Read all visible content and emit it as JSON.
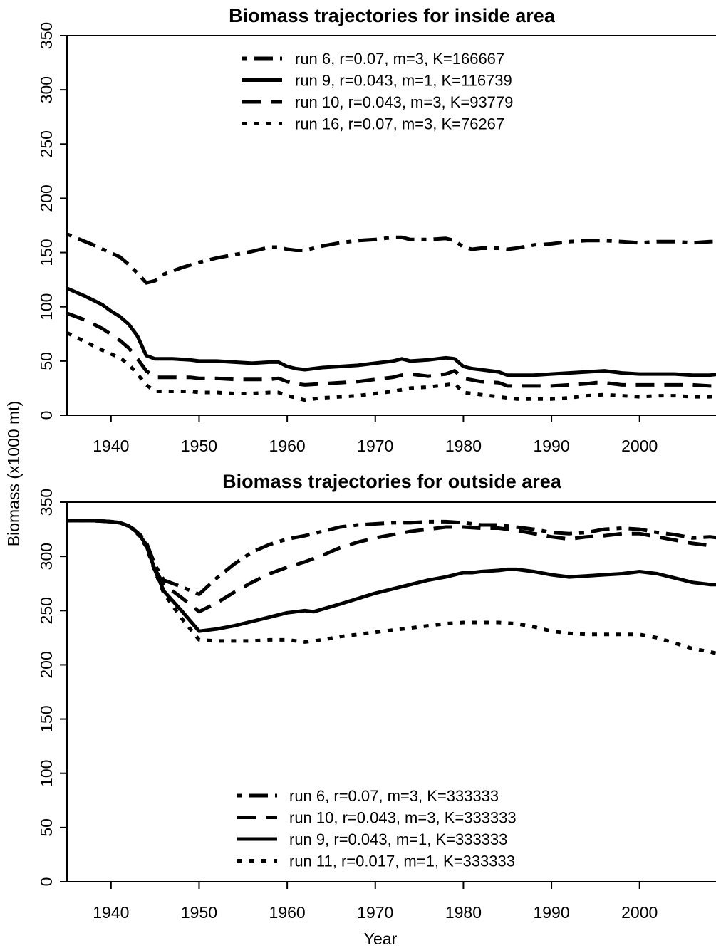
{
  "figure": {
    "ylabel": "Biomass (x1000 mt)",
    "xlabel": "Year"
  },
  "chart_data": [
    {
      "type": "line",
      "title": "Biomass trajectories for inside area",
      "xlabel": "",
      "ylabel": "Biomass (x1000 mt)",
      "xlim": [
        1935,
        2009
      ],
      "ylim": [
        0,
        350
      ],
      "xticks": [
        1940,
        1950,
        1960,
        1970,
        1980,
        1990,
        2000
      ],
      "yticks": [
        0,
        50,
        100,
        150,
        200,
        250,
        300,
        350
      ],
      "legend_position": "top-center",
      "series": [
        {
          "name": "run 6, r=0.07, m=3, K=166667",
          "style": "dotdash",
          "x": [
            1935,
            1938,
            1941,
            1942,
            1943,
            1944,
            1945,
            1946,
            1948,
            1950,
            1952,
            1954,
            1956,
            1958,
            1959,
            1960,
            1961,
            1962,
            1964,
            1966,
            1968,
            1970,
            1972,
            1973,
            1974,
            1976,
            1978,
            1979,
            1980,
            1981,
            1982,
            1984,
            1985,
            1986,
            1988,
            1990,
            1992,
            1994,
            1996,
            1998,
            2000,
            2002,
            2004,
            2006,
            2008,
            2009
          ],
          "y": [
            167,
            157,
            146,
            139,
            131,
            122,
            124,
            130,
            136,
            141,
            145,
            148,
            151,
            155,
            155,
            153,
            152,
            152,
            156,
            159,
            161,
            162,
            164,
            164,
            162,
            162,
            163,
            161,
            155,
            153,
            154,
            154,
            153,
            154,
            157,
            158,
            160,
            161,
            161,
            160,
            159,
            160,
            160,
            159,
            160,
            160
          ]
        },
        {
          "name": "run 9, r=0.043, m=1, K=116739",
          "style": "solid",
          "x": [
            1935,
            1937,
            1939,
            1940,
            1941,
            1942,
            1943,
            1944,
            1945,
            1947,
            1949,
            1950,
            1952,
            1954,
            1956,
            1958,
            1959,
            1960,
            1961,
            1962,
            1964,
            1966,
            1968,
            1970,
            1972,
            1973,
            1974,
            1976,
            1978,
            1979,
            1980,
            1981,
            1982,
            1984,
            1985,
            1986,
            1988,
            1990,
            1992,
            1994,
            1996,
            1997,
            1998,
            2000,
            2002,
            2004,
            2006,
            2008,
            2009
          ],
          "y": [
            117,
            110,
            102,
            96,
            91,
            84,
            73,
            55,
            52,
            52,
            51,
            50,
            50,
            49,
            48,
            49,
            49,
            45,
            43,
            42,
            44,
            45,
            46,
            48,
            50,
            52,
            50,
            51,
            53,
            52,
            45,
            43,
            42,
            40,
            37,
            37,
            37,
            38,
            39,
            40,
            41,
            40,
            39,
            38,
            38,
            38,
            37,
            37,
            38
          ]
        },
        {
          "name": "run 10, r=0.043, m=3, K=93779",
          "style": "dash",
          "x": [
            1935,
            1937,
            1939,
            1941,
            1942,
            1943,
            1944,
            1945,
            1947,
            1949,
            1950,
            1952,
            1954,
            1956,
            1958,
            1959,
            1960,
            1961,
            1962,
            1964,
            1966,
            1968,
            1970,
            1972,
            1973,
            1974,
            1976,
            1978,
            1979,
            1980,
            1982,
            1984,
            1985,
            1987,
            1990,
            1992,
            1994,
            1995,
            1996,
            1998,
            2000,
            2002,
            2004,
            2006,
            2008,
            2009
          ],
          "y": [
            94,
            88,
            80,
            69,
            62,
            52,
            41,
            35,
            35,
            35,
            34,
            34,
            33,
            33,
            33,
            34,
            31,
            29,
            28,
            29,
            30,
            31,
            33,
            35,
            37,
            38,
            36,
            38,
            41,
            34,
            31,
            30,
            27,
            27,
            27,
            28,
            29,
            30,
            30,
            28,
            28,
            28,
            28,
            28,
            27,
            27
          ]
        },
        {
          "name": "run 16, r=0.07, m=3, K=76267",
          "style": "dot",
          "x": [
            1935,
            1937,
            1939,
            1941,
            1942,
            1943,
            1944,
            1945,
            1947,
            1949,
            1950,
            1952,
            1954,
            1956,
            1958,
            1959,
            1960,
            1961,
            1962,
            1964,
            1966,
            1968,
            1970,
            1972,
            1974,
            1976,
            1978,
            1979,
            1980,
            1982,
            1984,
            1985,
            1986,
            1988,
            1990,
            1992,
            1994,
            1996,
            1998,
            2000,
            2002,
            2004,
            2006,
            2008,
            2009
          ],
          "y": [
            76,
            68,
            60,
            53,
            47,
            38,
            28,
            22,
            22,
            22,
            21,
            21,
            20,
            20,
            21,
            21,
            18,
            16,
            14,
            16,
            17,
            18,
            20,
            22,
            25,
            26,
            28,
            29,
            21,
            19,
            17,
            16,
            15,
            15,
            15,
            16,
            18,
            19,
            18,
            17,
            18,
            18,
            17,
            17,
            18
          ]
        }
      ]
    },
    {
      "type": "line",
      "title": "Biomass trajectories for outside area",
      "xlabel": "Year",
      "ylabel": "Biomass (x1000 mt)",
      "xlim": [
        1935,
        2009
      ],
      "ylim": [
        0,
        350
      ],
      "xticks": [
        1940,
        1950,
        1960,
        1970,
        1980,
        1990,
        2000
      ],
      "yticks": [
        0,
        50,
        100,
        150,
        200,
        250,
        300,
        350
      ],
      "legend_position": "bottom-center",
      "series": [
        {
          "name": "run 6, r=0.07, m=3, K=333333",
          "style": "dotdash",
          "x": [
            1935,
            1938,
            1940,
            1941,
            1942,
            1943,
            1944,
            1945,
            1946,
            1948,
            1950,
            1952,
            1954,
            1956,
            1958,
            1960,
            1962,
            1964,
            1966,
            1968,
            1970,
            1972,
            1974,
            1976,
            1978,
            1980,
            1982,
            1984,
            1986,
            1988,
            1990,
            1992,
            1994,
            1996,
            1998,
            2000,
            2002,
            2004,
            2006,
            2008,
            2009
          ],
          "y": [
            333,
            333,
            332,
            331,
            328,
            323,
            313,
            292,
            278,
            272,
            265,
            280,
            293,
            304,
            311,
            316,
            319,
            323,
            327,
            329,
            330,
            331,
            331,
            332,
            332,
            331,
            329,
            329,
            327,
            325,
            322,
            321,
            322,
            325,
            326,
            325,
            322,
            320,
            317,
            318,
            317
          ]
        },
        {
          "name": "run 10, r=0.043, m=3, K=333333",
          "style": "dash",
          "x": [
            1935,
            1938,
            1940,
            1941,
            1942,
            1943,
            1944,
            1945,
            1946,
            1948,
            1950,
            1952,
            1954,
            1956,
            1958,
            1960,
            1962,
            1964,
            1966,
            1968,
            1970,
            1972,
            1974,
            1976,
            1978,
            1980,
            1982,
            1984,
            1986,
            1988,
            1990,
            1992,
            1994,
            1996,
            1998,
            2000,
            2002,
            2004,
            2006,
            2008,
            2009
          ],
          "y": [
            333,
            333,
            332,
            331,
            328,
            322,
            310,
            288,
            274,
            262,
            249,
            257,
            267,
            276,
            284,
            290,
            295,
            301,
            308,
            313,
            317,
            320,
            323,
            325,
            327,
            327,
            326,
            326,
            324,
            321,
            318,
            316,
            318,
            319,
            321,
            321,
            318,
            315,
            312,
            310,
            311
          ]
        },
        {
          "name": "run 9, r=0.043, m=1, K=333333",
          "style": "solid",
          "x": [
            1935,
            1938,
            1940,
            1941,
            1942,
            1943,
            1944,
            1945,
            1946,
            1948,
            1950,
            1952,
            1954,
            1956,
            1958,
            1960,
            1962,
            1963,
            1966,
            1968,
            1970,
            1972,
            1974,
            1976,
            1978,
            1980,
            1981,
            1982,
            1984,
            1985,
            1986,
            1988,
            1990,
            1992,
            1994,
            1996,
            1998,
            2000,
            2002,
            2004,
            2006,
            2008,
            2009
          ],
          "y": [
            333,
            333,
            332,
            331,
            328,
            322,
            311,
            287,
            268,
            250,
            231,
            233,
            236,
            240,
            244,
            248,
            250,
            249,
            256,
            261,
            266,
            270,
            274,
            278,
            281,
            285,
            285,
            286,
            287,
            288,
            288,
            286,
            283,
            281,
            282,
            283,
            284,
            286,
            284,
            280,
            276,
            274,
            274
          ]
        },
        {
          "name": "run 11, r=0.017, m=1, K=333333",
          "style": "dot",
          "x": [
            1935,
            1938,
            1940,
            1941,
            1942,
            1943,
            1944,
            1945,
            1946,
            1948,
            1950,
            1952,
            1954,
            1956,
            1958,
            1960,
            1962,
            1964,
            1966,
            1968,
            1970,
            1972,
            1974,
            1976,
            1978,
            1980,
            1982,
            1984,
            1986,
            1988,
            1990,
            1992,
            1994,
            1996,
            1998,
            2000,
            2002,
            2004,
            2006,
            2008,
            2009
          ],
          "y": [
            333,
            333,
            332,
            331,
            328,
            321,
            309,
            286,
            266,
            243,
            223,
            222,
            222,
            222,
            223,
            223,
            221,
            223,
            226,
            228,
            230,
            232,
            234,
            236,
            238,
            239,
            239,
            239,
            238,
            235,
            231,
            229,
            228,
            228,
            228,
            228,
            225,
            220,
            215,
            212,
            210
          ]
        }
      ]
    }
  ]
}
